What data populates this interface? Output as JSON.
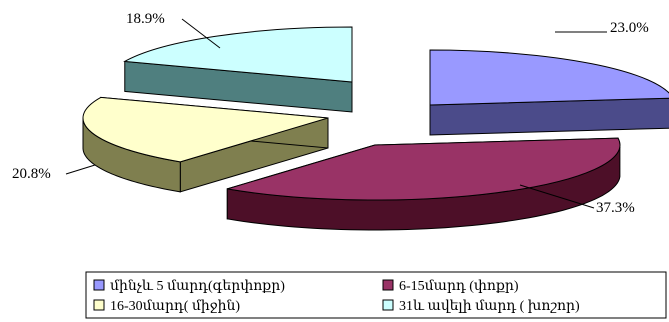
{
  "chart_data": {
    "type": "pie",
    "style": "3d-exploded",
    "categories": [
      "մինչև 5 մարդ(գերփոքր)",
      "6-15մարդ (փոքր)",
      "16-30մարդ( միջին)",
      "31և ավելի մարդ   ( խոշոր)"
    ],
    "values": [
      23.0,
      37.3,
      20.8,
      18.9
    ],
    "data_labels": [
      "23.0%",
      "37.3%",
      "20.8%",
      "18.9%"
    ],
    "legend_position": "bottom",
    "series_colors": {
      "top": [
        "#9999ff",
        "#993366",
        "#ffffcc",
        "#ccffff"
      ],
      "side": [
        "#4b4b8a",
        "#4d0f28",
        "#7f7f4f",
        "#4f7f7f"
      ]
    }
  }
}
